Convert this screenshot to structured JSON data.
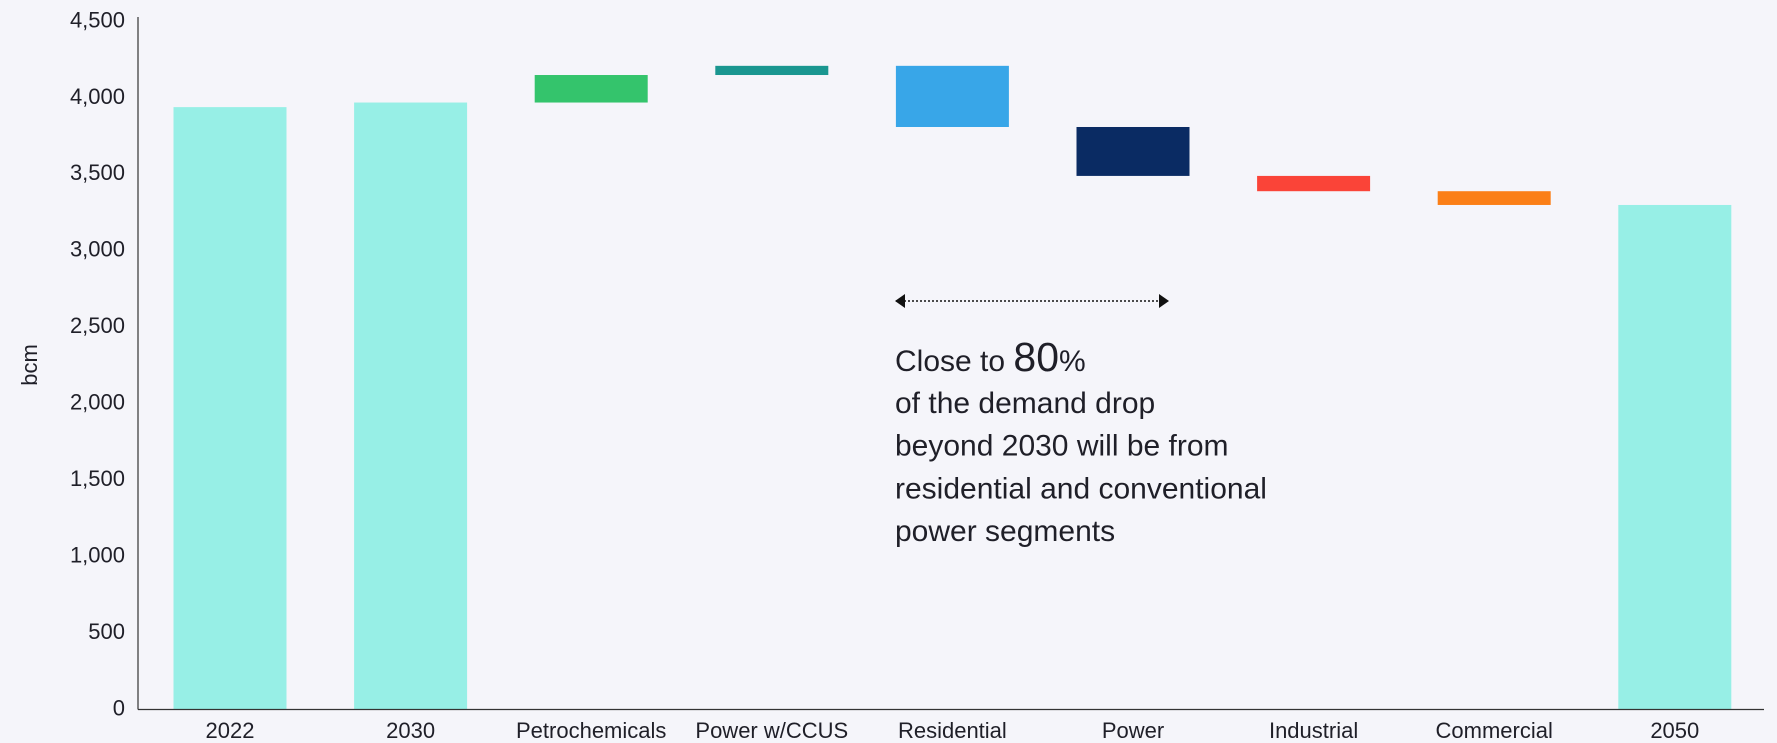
{
  "chart_data": {
    "type": "waterfall",
    "y_label": "bcm",
    "categories": [
      "2022",
      "2030",
      "Petrochemicals",
      "Power w/CCUS",
      "Residential",
      "Power",
      "Industrial",
      "Commercial",
      "2050"
    ],
    "values": [
      3940,
      3970,
      180,
      60,
      -400,
      -320,
      -100,
      -90,
      3300
    ],
    "totals": [
      true,
      true,
      false,
      false,
      false,
      false,
      false,
      false,
      true
    ],
    "colors": [
      "#97efe6",
      "#97efe6",
      "#34c46c",
      "#1a9690",
      "#38a6e8",
      "#0a2b63",
      "#fa4438",
      "#fb7f17",
      "#97efe6"
    ],
    "ylim": [
      0,
      4500
    ],
    "yticks": [
      0,
      500,
      {
        "value": 1000,
        "label": "1,000"
      },
      {
        "value": 1500,
        "label": "1,500"
      },
      {
        "value": 2000,
        "label": "2,000"
      },
      {
        "value": 2500,
        "label": "2,500"
      },
      {
        "value": 3000,
        "label": "3,000"
      },
      {
        "value": 3500,
        "label": "3,500"
      },
      {
        "value": 4000,
        "label": "4,000"
      },
      {
        "value": 4500,
        "label": "4,500"
      }
    ],
    "grid": false,
    "annotation": {
      "prefix": "Close to ",
      "number": 80,
      "unit": "%",
      "lines": [
        "of the demand drop",
        "beyond 2030 will be from",
        "residential and conventional",
        "power segments"
      ]
    }
  }
}
